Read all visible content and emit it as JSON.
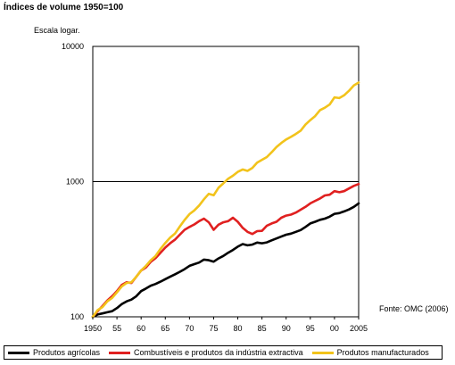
{
  "chart_data": {
    "type": "line",
    "title": "Índices de volume 1950=100",
    "yscale_note": "Escala logar.",
    "source": "Fonte: OMC (2006)",
    "y_scale": "log",
    "ylim": [
      100,
      10000
    ],
    "xlim": [
      1950,
      2005
    ],
    "yticks": [
      "100",
      "1000",
      "10000"
    ],
    "xticks": [
      "1950",
      "55",
      "60",
      "65",
      "70",
      "75",
      "80",
      "85",
      "90",
      "95",
      "00",
      "2005"
    ],
    "xtick_values": [
      1950,
      1955,
      1960,
      1965,
      1970,
      1975,
      1980,
      1985,
      1990,
      1995,
      2000,
      2005
    ],
    "gridlines_y": [
      1000
    ],
    "legend_position": "bottom",
    "series": [
      {
        "name": "Produtos agrícolas",
        "color": "#000000",
        "x": [
          1950,
          1951,
          1952,
          1953,
          1954,
          1955,
          1956,
          1957,
          1958,
          1959,
          1960,
          1961,
          1962,
          1963,
          1964,
          1965,
          1966,
          1967,
          1968,
          1969,
          1970,
          1971,
          1972,
          1973,
          1974,
          1975,
          1976,
          1977,
          1978,
          1979,
          1980,
          1981,
          1982,
          1983,
          1984,
          1985,
          1986,
          1987,
          1988,
          1989,
          1990,
          1991,
          1992,
          1993,
          1994,
          1995,
          1996,
          1997,
          1998,
          1999,
          2000,
          2001,
          2002,
          2003,
          2004,
          2005
        ],
        "values": [
          100,
          104,
          106,
          108,
          110,
          116,
          124,
          130,
          134,
          142,
          155,
          162,
          170,
          175,
          182,
          190,
          198,
          206,
          215,
          225,
          238,
          245,
          252,
          265,
          262,
          256,
          270,
          282,
          298,
          312,
          330,
          345,
          338,
          342,
          354,
          350,
          355,
          368,
          380,
          392,
          405,
          412,
          425,
          438,
          462,
          490,
          505,
          522,
          532,
          550,
          578,
          585,
          602,
          622,
          650,
          690
        ]
      },
      {
        "name": "Combustíveis e produtos da indústria extractiva",
        "color": "#e02020",
        "x": [
          1950,
          1951,
          1952,
          1953,
          1954,
          1955,
          1956,
          1957,
          1958,
          1959,
          1960,
          1961,
          1962,
          1963,
          1964,
          1965,
          1966,
          1967,
          1968,
          1969,
          1970,
          1971,
          1972,
          1973,
          1974,
          1975,
          1976,
          1977,
          1978,
          1979,
          1980,
          1981,
          1982,
          1983,
          1984,
          1985,
          1986,
          1987,
          1988,
          1989,
          1990,
          1991,
          1992,
          1993,
          1994,
          1995,
          1996,
          1997,
          1998,
          1999,
          2000,
          2001,
          2002,
          2003,
          2004,
          2005
        ],
        "values": [
          100,
          110,
          120,
          132,
          142,
          155,
          172,
          180,
          178,
          198,
          220,
          232,
          255,
          272,
          298,
          325,
          350,
          372,
          405,
          440,
          462,
          482,
          510,
          532,
          500,
          440,
          480,
          500,
          510,
          540,
          505,
          455,
          425,
          410,
          430,
          432,
          472,
          490,
          505,
          540,
          560,
          570,
          590,
          620,
          650,
          690,
          720,
          750,
          790,
          800,
          850,
          835,
          850,
          890,
          930,
          960
        ]
      },
      {
        "name": "Produtos manufacturados",
        "color": "#f2c31b",
        "x": [
          1950,
          1951,
          1952,
          1953,
          1954,
          1955,
          1956,
          1957,
          1958,
          1959,
          1960,
          1961,
          1962,
          1963,
          1964,
          1965,
          1966,
          1967,
          1968,
          1969,
          1970,
          1971,
          1972,
          1973,
          1974,
          1975,
          1976,
          1977,
          1978,
          1979,
          1980,
          1981,
          1982,
          1983,
          1984,
          1985,
          1986,
          1987,
          1988,
          1989,
          1990,
          1991,
          1992,
          1993,
          1994,
          1995,
          1996,
          1997,
          1998,
          1999,
          2000,
          2001,
          2002,
          2003,
          2004,
          2005
        ],
        "values": [
          100,
          112,
          118,
          130,
          138,
          152,
          168,
          178,
          180,
          198,
          220,
          238,
          262,
          282,
          318,
          352,
          385,
          412,
          465,
          520,
          575,
          612,
          665,
          740,
          812,
          792,
          900,
          970,
          1050,
          1105,
          1180,
          1230,
          1200,
          1260,
          1380,
          1450,
          1520,
          1650,
          1800,
          1930,
          2050,
          2140,
          2250,
          2380,
          2640,
          2850,
          3050,
          3380,
          3520,
          3720,
          4200,
          4150,
          4350,
          4700,
          5150,
          5400
        ]
      }
    ]
  }
}
